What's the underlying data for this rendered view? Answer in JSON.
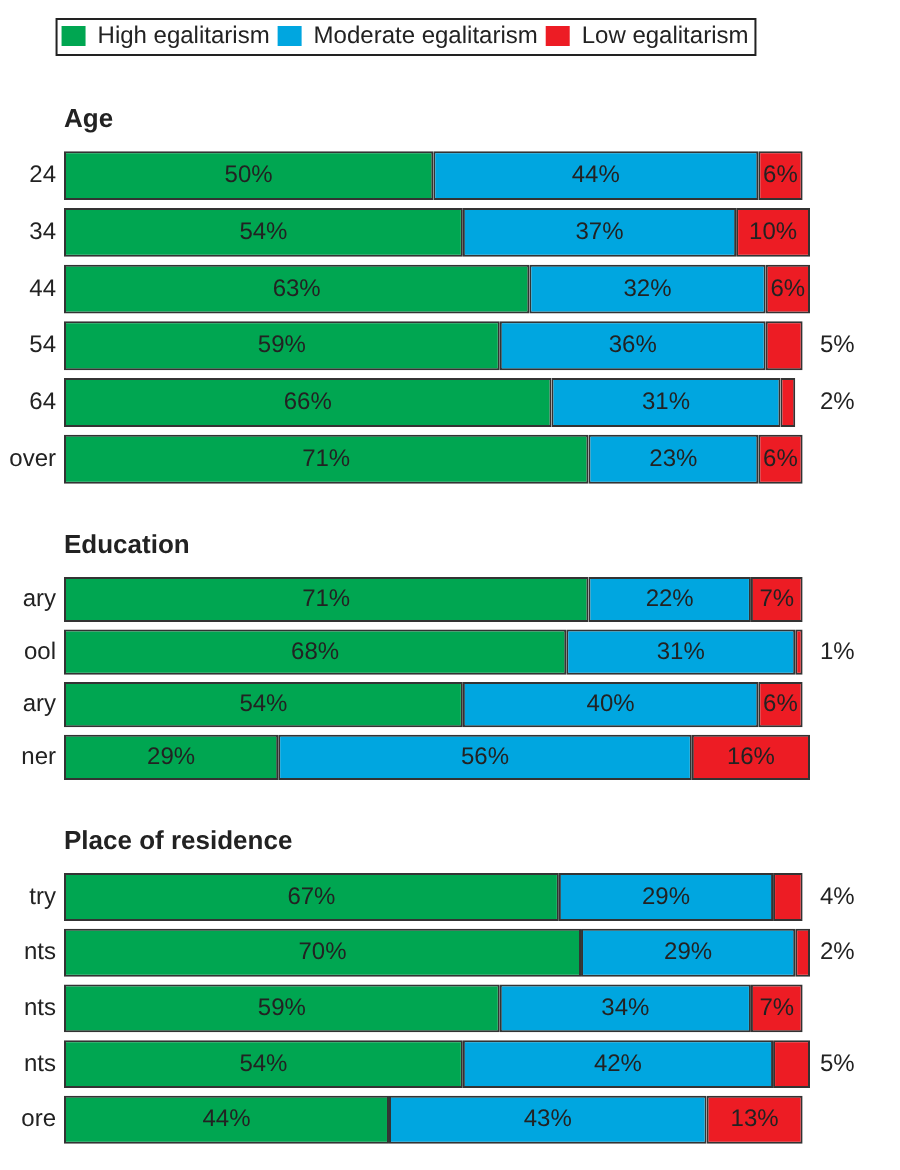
{
  "chart_data": [
    {
      "type": "bar",
      "orientation": "horizontal",
      "stacked": true,
      "title": "Age",
      "categories": [
        "24",
        "34",
        "44",
        "54",
        "64",
        "over"
      ],
      "tick_labels": "y",
      "grid": false,
      "legend": "top",
      "series": [
        {
          "name": "High egalitarism",
          "color": "#00a651",
          "values": [
            50,
            54,
            63,
            59,
            66,
            71
          ],
          "value_labels": [
            "50%",
            "54%",
            "63%",
            "59%",
            "66%",
            "71%"
          ]
        },
        {
          "name": "Moderate egalitarism",
          "color": "#00a6e0",
          "values": [
            44,
            37,
            32,
            36,
            31,
            23
          ],
          "value_labels": [
            "44%",
            "37%",
            "32%",
            "36%",
            "31%",
            "23%"
          ]
        },
        {
          "name": "Low egalitarism",
          "color": "#ed1c24",
          "values": [
            6,
            10,
            6,
            5,
            2,
            6
          ],
          "value_labels": [
            "6%",
            "10%",
            "6%",
            "5%",
            "2%",
            "6%"
          ]
        }
      ]
    },
    {
      "type": "bar",
      "orientation": "horizontal",
      "stacked": true,
      "title": "Education",
      "categories": [
        "ary",
        "ool",
        "ary",
        "ner"
      ],
      "tick_labels": "y",
      "grid": false,
      "series": [
        {
          "color": "#00a651",
          "values": [
            71,
            68,
            54,
            29
          ],
          "value_labels": [
            "71%",
            "68%",
            "54%",
            "29%"
          ]
        },
        {
          "color": "#00a6e0",
          "values": [
            22,
            31,
            40,
            56
          ],
          "value_labels": [
            "22%",
            "31%",
            "40%",
            "56%"
          ]
        },
        {
          "color": "#ed1c24",
          "values": [
            7,
            1,
            6,
            16
          ],
          "value_labels": [
            "7%",
            "1%",
            "6%",
            "16%"
          ]
        }
      ]
    },
    {
      "type": "bar",
      "orientation": "horizontal",
      "stacked": true,
      "title": "Place of residence",
      "categories": [
        "try",
        "nts",
        "nts",
        "nts",
        "ore"
      ],
      "tick_labels": "y",
      "grid": false,
      "series": [
        {
          "color": "#00a651",
          "values": [
            67,
            70,
            59,
            54,
            44
          ],
          "value_labels": [
            "67%",
            "70%",
            "59%",
            "54%",
            "44%"
          ]
        },
        {
          "color": "#00a6e0",
          "values": [
            29,
            29,
            34,
            42,
            43
          ],
          "value_labels": [
            "29%",
            "29%",
            "34%",
            "42%",
            "43%"
          ]
        },
        {
          "color": "#ed1c24",
          "values": [
            4,
            2,
            7,
            5,
            13
          ],
          "value_labels": [
            "4%",
            "2%",
            "7%",
            "5%",
            "13%"
          ]
        }
      ]
    }
  ]
}
